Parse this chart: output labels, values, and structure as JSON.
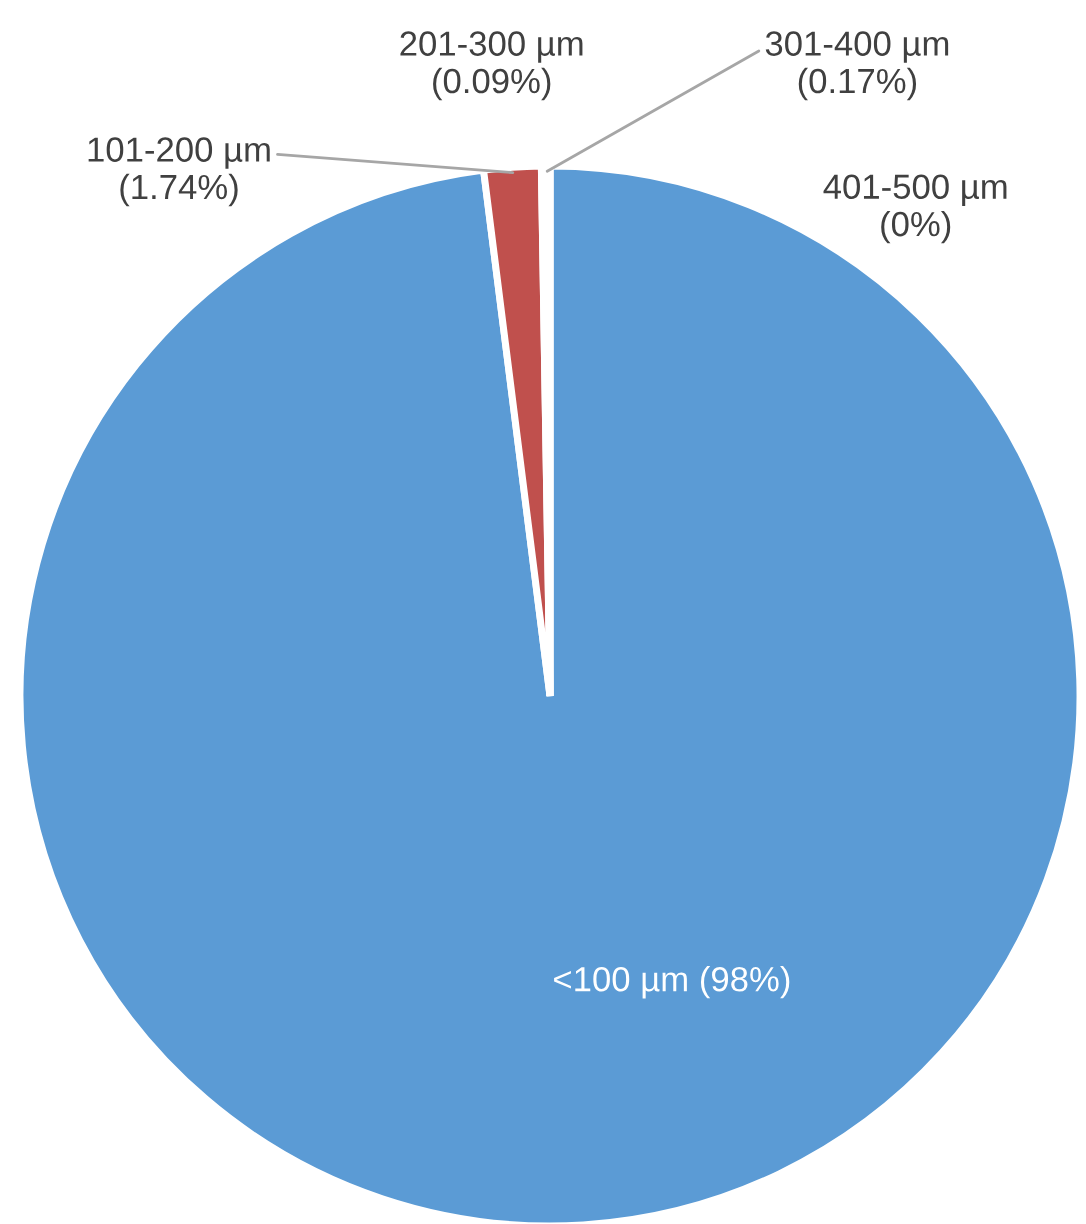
{
  "chart_data": {
    "type": "pie",
    "categories": [
      "<100 µm",
      "101-200 µm",
      "201-300 µm",
      "301-400 µm",
      "401-500 µm"
    ],
    "values": [
      98,
      1.74,
      0.09,
      0.17,
      0
    ],
    "colors": [
      "#5b9bd5",
      "#c0504d",
      "#9bbb59",
      "#8064a2",
      "#4bacc6"
    ],
    "value_labels": [
      "(98%)",
      "(1.74%)",
      "(0.09%)",
      "(0.17%)",
      "(0%)"
    ]
  }
}
